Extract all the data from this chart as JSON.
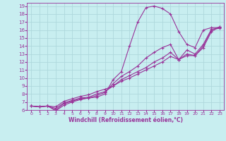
{
  "xlabel": "Windchill (Refroidissement éolien,°C)",
  "bg_color": "#c8eef0",
  "grid_color": "#aed8dc",
  "line_color": "#993399",
  "xlim": [
    -0.5,
    23.5
  ],
  "ylim": [
    6,
    19.4
  ],
  "xticks": [
    0,
    1,
    2,
    3,
    4,
    5,
    6,
    7,
    8,
    9,
    10,
    11,
    12,
    13,
    14,
    15,
    16,
    17,
    18,
    19,
    20,
    21,
    22,
    23
  ],
  "yticks": [
    6,
    7,
    8,
    9,
    10,
    11,
    12,
    13,
    14,
    15,
    16,
    17,
    18,
    19
  ],
  "line1_x": [
    0,
    1,
    2,
    3,
    4,
    5,
    6,
    7,
    8,
    9,
    10,
    11,
    12,
    13,
    14,
    15,
    16,
    17,
    18,
    19,
    20,
    21,
    22,
    23
  ],
  "line1_y": [
    6.5,
    6.4,
    6.5,
    5.9,
    6.6,
    7.0,
    7.3,
    7.5,
    7.6,
    8.0,
    9.8,
    10.8,
    14.0,
    17.0,
    18.8,
    19.0,
    18.7,
    18.0,
    15.8,
    14.2,
    13.8,
    16.0,
    16.3,
    16.3
  ],
  "line2_x": [
    0,
    1,
    2,
    3,
    4,
    5,
    6,
    7,
    8,
    9,
    10,
    11,
    12,
    13,
    14,
    15,
    16,
    17,
    18,
    19,
    20,
    21,
    22,
    23
  ],
  "line2_y": [
    6.5,
    6.4,
    6.5,
    6.0,
    6.8,
    7.1,
    7.4,
    7.5,
    7.8,
    8.2,
    9.3,
    10.2,
    10.8,
    11.5,
    12.5,
    13.2,
    13.8,
    14.2,
    12.3,
    13.5,
    13.0,
    14.2,
    16.1,
    16.2
  ],
  "line3_x": [
    0,
    1,
    2,
    3,
    4,
    5,
    6,
    7,
    8,
    9,
    10,
    11,
    12,
    13,
    14,
    15,
    16,
    17,
    18,
    19,
    20,
    21,
    22,
    23
  ],
  "line3_y": [
    6.5,
    6.4,
    6.5,
    6.2,
    6.9,
    7.2,
    7.5,
    7.6,
    8.0,
    8.3,
    9.0,
    9.8,
    10.3,
    10.8,
    11.3,
    12.0,
    12.5,
    13.2,
    12.3,
    13.0,
    12.8,
    14.0,
    16.0,
    16.4
  ],
  "line4_x": [
    0,
    1,
    2,
    3,
    4,
    5,
    6,
    7,
    8,
    9,
    10,
    11,
    12,
    13,
    14,
    15,
    16,
    17,
    18,
    19,
    20,
    21,
    22,
    23
  ],
  "line4_y": [
    6.5,
    6.4,
    6.5,
    6.4,
    7.1,
    7.4,
    7.7,
    7.9,
    8.3,
    8.6,
    9.0,
    9.6,
    10.0,
    10.5,
    11.0,
    11.5,
    12.0,
    12.7,
    12.3,
    12.8,
    12.8,
    13.8,
    15.8,
    16.4
  ]
}
